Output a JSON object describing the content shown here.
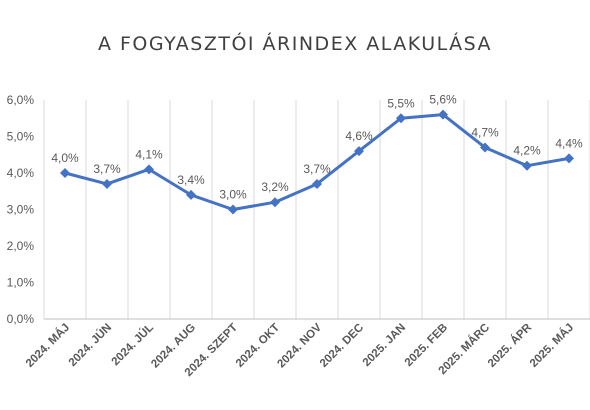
{
  "chart_data": {
    "type": "line",
    "title": "A FOGYASZTÓI ÁRINDEX ALAKULÁSA",
    "categories": [
      "2024. MÁJ",
      "2024. JÚN",
      "2024. JÚL",
      "2024. AUG",
      "2024. SZEPT",
      "2024. OKT",
      "2024. NOV",
      "2024. DEC",
      "2025. JAN",
      "2025. FEB",
      "2025. MÁRC",
      "2025. ÁPR",
      "2025. MÁJ"
    ],
    "values": [
      4.0,
      3.7,
      4.1,
      3.4,
      3.0,
      3.2,
      3.7,
      4.6,
      5.5,
      5.6,
      4.7,
      4.2,
      4.4
    ],
    "data_labels": [
      "4,0%",
      "3,7%",
      "4,1%",
      "3,4%",
      "3,0%",
      "3,2%",
      "3,7%",
      "4,6%",
      "5,5%",
      "5,6%",
      "4,7%",
      "4,2%",
      "4,4%"
    ],
    "y_ticks": [
      0,
      1,
      2,
      3,
      4,
      5,
      6
    ],
    "y_tick_labels": [
      "0,0%",
      "1,0%",
      "2,0%",
      "3,0%",
      "4,0%",
      "5,0%",
      "6,0%"
    ],
    "ylim": [
      0,
      6
    ],
    "grid": "vertical",
    "legend": "none",
    "line_color": "#4472c4"
  }
}
